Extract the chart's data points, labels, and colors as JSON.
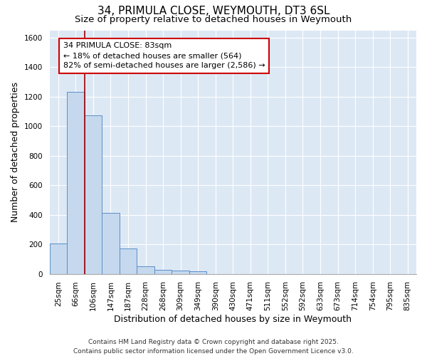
{
  "title_line1": "34, PRIMULA CLOSE, WEYMOUTH, DT3 6SL",
  "title_line2": "Size of property relative to detached houses in Weymouth",
  "xlabel": "Distribution of detached houses by size in Weymouth",
  "ylabel": "Number of detached properties",
  "categories": [
    "25sqm",
    "66sqm",
    "106sqm",
    "147sqm",
    "187sqm",
    "228sqm",
    "268sqm",
    "309sqm",
    "349sqm",
    "390sqm",
    "430sqm",
    "471sqm",
    "511sqm",
    "552sqm",
    "592sqm",
    "633sqm",
    "673sqm",
    "714sqm",
    "754sqm",
    "795sqm",
    "835sqm"
  ],
  "values": [
    205,
    1235,
    1075,
    415,
    170,
    50,
    25,
    20,
    15,
    0,
    0,
    0,
    0,
    0,
    0,
    0,
    0,
    0,
    0,
    0,
    0
  ],
  "bar_color": "#c5d8ed",
  "bar_edge_color": "#5b8fc7",
  "plot_bg_color": "#dde8f5",
  "fig_bg_color": "#ffffff",
  "grid_color": "#ffffff",
  "vline_x": 1.5,
  "vline_color": "#a00000",
  "annotation_line1": "34 PRIMULA CLOSE: 83sqm",
  "annotation_line2": "← 18% of detached houses are smaller (564)",
  "annotation_line3": "82% of semi-detached houses are larger (2,586) →",
  "annotation_box_color": "#cc0000",
  "annotation_text_color": "#000000",
  "ylim": [
    0,
    1650
  ],
  "yticks": [
    0,
    200,
    400,
    600,
    800,
    1000,
    1200,
    1400,
    1600
  ],
  "footnote1": "Contains HM Land Registry data © Crown copyright and database right 2025.",
  "footnote2": "Contains public sector information licensed under the Open Government Licence v3.0.",
  "title_fontsize": 11,
  "subtitle_fontsize": 9.5,
  "axis_label_fontsize": 9,
  "tick_fontsize": 7.5,
  "annotation_fontsize": 8,
  "footnote_fontsize": 6.5
}
